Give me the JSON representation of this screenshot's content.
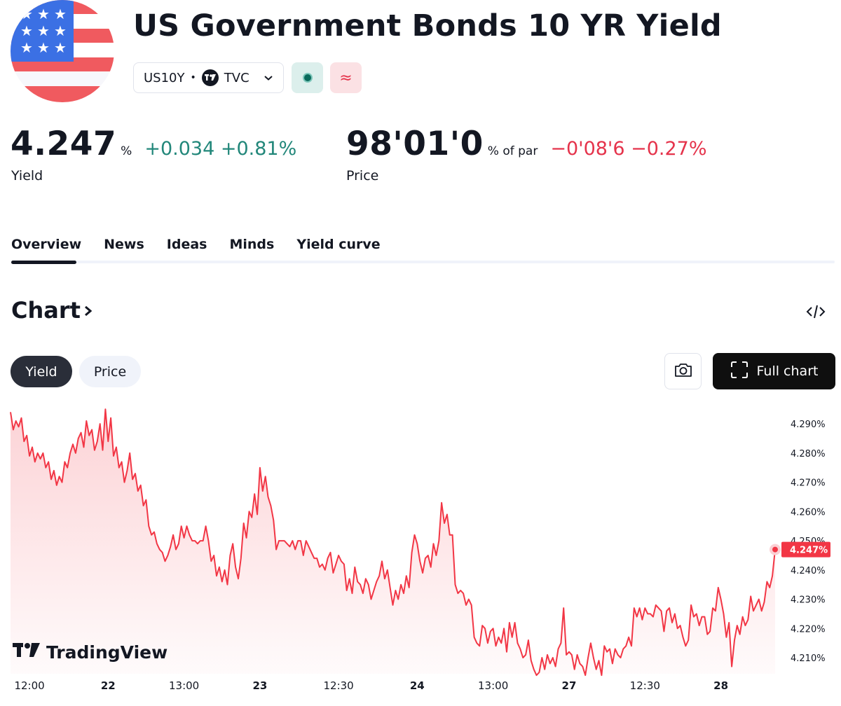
{
  "header": {
    "title": "US Government Bonds 10 YR Yield",
    "symbol": "US10Y",
    "separator": "•",
    "exchange": "TVC",
    "flag_icon": "us-flag-icon",
    "exchange_icon": "tradingview-icon",
    "badge_market_icon": "market-status-icon",
    "badge_delay_symbol": "≈"
  },
  "quotes": {
    "yield": {
      "value": "4.247",
      "unit": "%",
      "change": "+0.034 +0.81%",
      "label": "Yield"
    },
    "price": {
      "value": "98'01'0",
      "unit": "% of par",
      "change": "−0'08'6 −0.27%",
      "label": "Price"
    }
  },
  "tabs": [
    "Overview",
    "News",
    "Ideas",
    "Minds",
    "Yield curve"
  ],
  "chart_section": {
    "heading": "Chart",
    "heading_icon": "chevron-right-icon",
    "embed_icon": "code-embed-icon",
    "toggle_yield": "Yield",
    "toggle_price": "Price",
    "camera_icon": "camera-icon",
    "full_chart_label": "Full chart",
    "full_chart_icon": "fullscreen-icon",
    "watermark": "TradingView"
  },
  "colors": {
    "positive": "#22877a",
    "negative": "#e5334b",
    "line": "#f23645",
    "dark": "#131722"
  },
  "chart_data": {
    "type": "area",
    "title": "",
    "ylim": [
      4.2045,
      4.2965
    ],
    "y_ticks": [
      "4.290%",
      "4.280%",
      "4.270%",
      "4.260%",
      "4.250%",
      "4.240%",
      "4.230%",
      "4.220%",
      "4.210%"
    ],
    "y_tick_values": [
      4.29,
      4.28,
      4.27,
      4.26,
      4.25,
      4.24,
      4.23,
      4.22,
      4.21
    ],
    "x_ticks": [
      "12:00",
      "22",
      "13:00",
      "23",
      "12:30",
      "24",
      "13:00",
      "27",
      "12:30",
      "28"
    ],
    "x_tick_index": [
      7,
      36,
      64,
      92,
      121,
      150,
      178,
      206,
      234,
      262
    ],
    "last_value_label": "4.247%",
    "series": [
      {
        "values": [
          4.294,
          4.288,
          4.291,
          4.289,
          4.292,
          4.284,
          4.286,
          4.279,
          4.282,
          4.277,
          4.28,
          4.278,
          4.28,
          4.275,
          4.277,
          4.271,
          4.274,
          4.269,
          4.272,
          4.27,
          4.277,
          4.275,
          4.28,
          4.283,
          4.28,
          4.285,
          4.287,
          4.282,
          4.291,
          4.286,
          4.288,
          4.281,
          4.284,
          4.29,
          4.281,
          4.295,
          4.284,
          4.292,
          4.279,
          4.282,
          4.275,
          4.277,
          4.27,
          4.274,
          4.28,
          4.271,
          4.273,
          4.267,
          4.269,
          4.262,
          4.264,
          4.255,
          4.252,
          4.253,
          4.249,
          4.247,
          4.246,
          4.243,
          4.245,
          4.248,
          4.252,
          4.247,
          4.249,
          4.255,
          4.251,
          4.255,
          4.252,
          4.25,
          4.25,
          4.249,
          4.25,
          4.25,
          4.255,
          4.25,
          4.243,
          4.245,
          4.238,
          4.241,
          4.236,
          4.24,
          4.235,
          4.245,
          4.249,
          4.241,
          4.237,
          4.244,
          4.256,
          4.251,
          4.26,
          4.258,
          4.266,
          4.259,
          4.275,
          4.267,
          4.272,
          4.265,
          4.262,
          4.257,
          4.247,
          4.25,
          4.25,
          4.25,
          4.249,
          4.248,
          4.25,
          4.247,
          4.25,
          4.25,
          4.245,
          4.25,
          4.248,
          4.246,
          4.244,
          4.244,
          4.241,
          4.242,
          4.24,
          4.244,
          4.246,
          4.239,
          4.242,
          4.245,
          4.243,
          4.242,
          4.233,
          4.237,
          4.232,
          4.241,
          4.236,
          4.235,
          4.232,
          4.237,
          4.235,
          4.23,
          4.233,
          4.236,
          4.238,
          4.243,
          4.237,
          4.24,
          4.234,
          4.228,
          4.233,
          4.23,
          4.235,
          4.232,
          4.238,
          4.234,
          4.246,
          4.252,
          4.249,
          4.243,
          4.239,
          4.244,
          4.245,
          4.241,
          4.249,
          4.245,
          4.25,
          4.263,
          4.256,
          4.259,
          4.252,
          4.252,
          4.235,
          4.232,
          4.233,
          4.232,
          4.228,
          4.23,
          4.228,
          4.217,
          4.215,
          4.214,
          4.221,
          4.22,
          4.215,
          4.219,
          4.22,
          4.214,
          4.217,
          4.215,
          4.22,
          4.212,
          4.222,
          4.217,
          4.222,
          4.215,
          4.213,
          4.21,
          4.211,
          4.216,
          4.209,
          4.206,
          4.204,
          4.205,
          4.21,
          4.206,
          4.211,
          4.208,
          4.21,
          4.207,
          4.213,
          4.215,
          4.227,
          4.211,
          4.212,
          4.211,
          4.206,
          4.211,
          4.208,
          4.207,
          4.204,
          4.21,
          4.215,
          4.21,
          4.206,
          4.209,
          4.204,
          4.214,
          4.212,
          4.213,
          4.208,
          4.213,
          4.211,
          4.21,
          4.213,
          4.214,
          4.217,
          4.214,
          4.227,
          4.224,
          4.227,
          4.223,
          4.227,
          4.225,
          4.225,
          4.224,
          4.228,
          4.227,
          4.226,
          4.219,
          4.226,
          4.227,
          4.222,
          4.225,
          4.22,
          4.221,
          4.217,
          4.214,
          4.216,
          4.228,
          4.224,
          4.225,
          4.221,
          4.224,
          4.224,
          4.218,
          4.219,
          4.227,
          4.226,
          4.234,
          4.23,
          4.225,
          4.217,
          4.222,
          4.207,
          4.216,
          4.221,
          4.218,
          4.224,
          4.221,
          4.223,
          4.231,
          4.226,
          4.228,
          4.23,
          4.226,
          4.229,
          4.236,
          4.234,
          4.238,
          4.247
        ]
      }
    ]
  }
}
